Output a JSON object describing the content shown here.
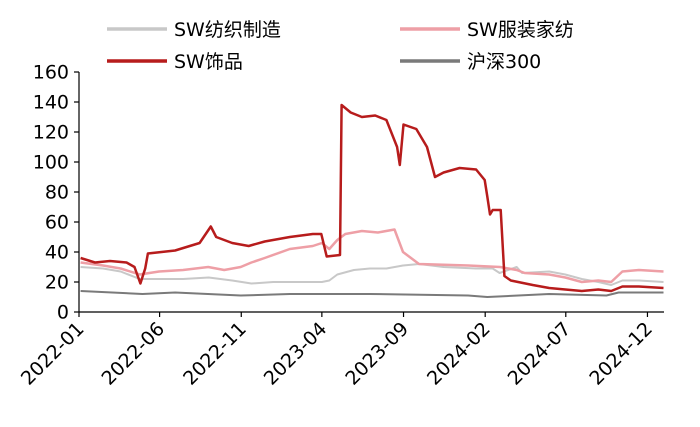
{
  "chart_data": {
    "type": "line",
    "title": "",
    "xlabel": "",
    "ylabel": "",
    "xlim": [
      "2022-01",
      "2024-12"
    ],
    "ylim": [
      0,
      160
    ],
    "yticks": [
      0,
      20,
      40,
      60,
      80,
      100,
      120,
      140,
      160
    ],
    "xticks": [
      "2022-01",
      "2022-06",
      "2022-11",
      "2023-04",
      "2023-09",
      "2024-02",
      "2024-07",
      "2024-12"
    ],
    "grid": false,
    "legend_position": "top",
    "series": [
      {
        "name": "SW纺织制造",
        "color": "#c8c8c8",
        "points": [
          [
            "2022-01-04",
            30
          ],
          [
            "2022-02-15",
            29
          ],
          [
            "2022-03-20",
            27
          ],
          [
            "2022-04-25",
            22
          ],
          [
            "2022-05-31",
            22
          ],
          [
            "2022-07-15",
            22
          ],
          [
            "2022-09-01",
            23
          ],
          [
            "2022-10-15",
            21
          ],
          [
            "2022-11-20",
            19
          ],
          [
            "2022-12-31",
            20
          ],
          [
            "2023-02-15",
            20
          ],
          [
            "2023-04-01",
            20
          ],
          [
            "2023-04-15",
            21
          ],
          [
            "2023-04-30",
            25
          ],
          [
            "2023-05-31",
            28
          ],
          [
            "2023-06-30",
            29
          ],
          [
            "2023-07-31",
            29
          ],
          [
            "2023-08-31",
            31
          ],
          [
            "2023-09-30",
            32
          ],
          [
            "2023-11-15",
            30
          ],
          [
            "2024-01-15",
            29
          ],
          [
            "2024-02-15",
            29
          ],
          [
            "2024-02-28",
            26
          ],
          [
            "2024-03-31",
            30
          ],
          [
            "2024-04-10",
            26
          ],
          [
            "2024-05-31",
            27
          ],
          [
            "2024-06-30",
            25
          ],
          [
            "2024-07-31",
            22
          ],
          [
            "2024-08-31",
            20
          ],
          [
            "2024-09-24",
            18
          ],
          [
            "2024-10-15",
            21
          ],
          [
            "2024-11-15",
            21
          ],
          [
            "2024-12-31",
            20
          ]
        ]
      },
      {
        "name": "SW服装家纺",
        "color": "#ee9fa6",
        "points": [
          [
            "2022-01-04",
            33
          ],
          [
            "2022-02-15",
            31
          ],
          [
            "2022-03-20",
            29
          ],
          [
            "2022-04-25",
            25
          ],
          [
            "2022-05-31",
            27
          ],
          [
            "2022-07-15",
            28
          ],
          [
            "2022-08-31",
            30
          ],
          [
            "2022-09-30",
            28
          ],
          [
            "2022-10-31",
            30
          ],
          [
            "2022-11-20",
            33
          ],
          [
            "2022-12-15",
            36
          ],
          [
            "2023-01-31",
            42
          ],
          [
            "2023-03-15",
            44
          ],
          [
            "2023-04-01",
            46
          ],
          [
            "2023-04-15",
            42
          ],
          [
            "2023-04-30",
            48
          ],
          [
            "2023-05-15",
            52
          ],
          [
            "2023-06-15",
            54
          ],
          [
            "2023-07-15",
            53
          ],
          [
            "2023-08-15",
            55
          ],
          [
            "2023-08-31",
            40
          ],
          [
            "2023-09-30",
            32
          ],
          [
            "2023-12-31",
            31
          ],
          [
            "2024-02-29",
            30
          ],
          [
            "2024-03-31",
            28
          ],
          [
            "2024-04-15",
            26
          ],
          [
            "2024-05-31",
            25
          ],
          [
            "2024-06-30",
            23
          ],
          [
            "2024-07-31",
            20
          ],
          [
            "2024-08-31",
            21
          ],
          [
            "2024-09-24",
            20
          ],
          [
            "2024-10-15",
            27
          ],
          [
            "2024-11-15",
            28
          ],
          [
            "2024-12-31",
            27
          ]
        ]
      },
      {
        "name": "SW饰品",
        "color": "#b71c1c",
        "points": [
          [
            "2022-01-04",
            36
          ],
          [
            "2022-01-31",
            33
          ],
          [
            "2022-02-28",
            34
          ],
          [
            "2022-03-31",
            33
          ],
          [
            "2022-04-15",
            30
          ],
          [
            "2022-04-26",
            19
          ],
          [
            "2022-05-05",
            29
          ],
          [
            "2022-05-10",
            39
          ],
          [
            "2022-06-30",
            41
          ],
          [
            "2022-08-15",
            46
          ],
          [
            "2022-09-05",
            57
          ],
          [
            "2022-09-15",
            50
          ],
          [
            "2022-10-15",
            46
          ],
          [
            "2022-11-15",
            44
          ],
          [
            "2022-12-15",
            47
          ],
          [
            "2023-01-31",
            50
          ],
          [
            "2023-03-15",
            52
          ],
          [
            "2023-03-31",
            52
          ],
          [
            "2023-04-10",
            37
          ],
          [
            "2023-05-05",
            38
          ],
          [
            "2023-05-08",
            138
          ],
          [
            "2023-05-25",
            133
          ],
          [
            "2023-06-15",
            130
          ],
          [
            "2023-07-10",
            131
          ],
          [
            "2023-07-31",
            128
          ],
          [
            "2023-08-20",
            110
          ],
          [
            "2023-08-25",
            98
          ],
          [
            "2023-09-01",
            125
          ],
          [
            "2023-09-25",
            122
          ],
          [
            "2023-10-15",
            110
          ],
          [
            "2023-10-30",
            90
          ],
          [
            "2023-11-15",
            93
          ],
          [
            "2023-12-15",
            96
          ],
          [
            "2024-01-15",
            95
          ],
          [
            "2024-01-31",
            88
          ],
          [
            "2024-02-05",
            77
          ],
          [
            "2024-02-10",
            65
          ],
          [
            "2024-02-15",
            68
          ],
          [
            "2024-03-01",
            68
          ],
          [
            "2024-03-08",
            24
          ],
          [
            "2024-03-20",
            21
          ],
          [
            "2024-04-30",
            18
          ],
          [
            "2024-05-31",
            16
          ],
          [
            "2024-06-30",
            15
          ],
          [
            "2024-07-31",
            14
          ],
          [
            "2024-08-31",
            15
          ],
          [
            "2024-09-24",
            14
          ],
          [
            "2024-10-15",
            17
          ],
          [
            "2024-11-15",
            17
          ],
          [
            "2024-12-31",
            16
          ]
        ]
      },
      {
        "name": "沪深300",
        "color": "#7a7a7a",
        "points": [
          [
            "2022-01-04",
            14
          ],
          [
            "2022-04-30",
            12
          ],
          [
            "2022-06-30",
            13
          ],
          [
            "2022-10-31",
            11
          ],
          [
            "2023-01-31",
            12
          ],
          [
            "2023-06-30",
            12
          ],
          [
            "2023-12-31",
            11
          ],
          [
            "2024-02-05",
            10
          ],
          [
            "2024-05-31",
            12
          ],
          [
            "2024-09-15",
            11
          ],
          [
            "2024-10-08",
            13
          ],
          [
            "2024-12-31",
            13
          ]
        ]
      }
    ]
  }
}
